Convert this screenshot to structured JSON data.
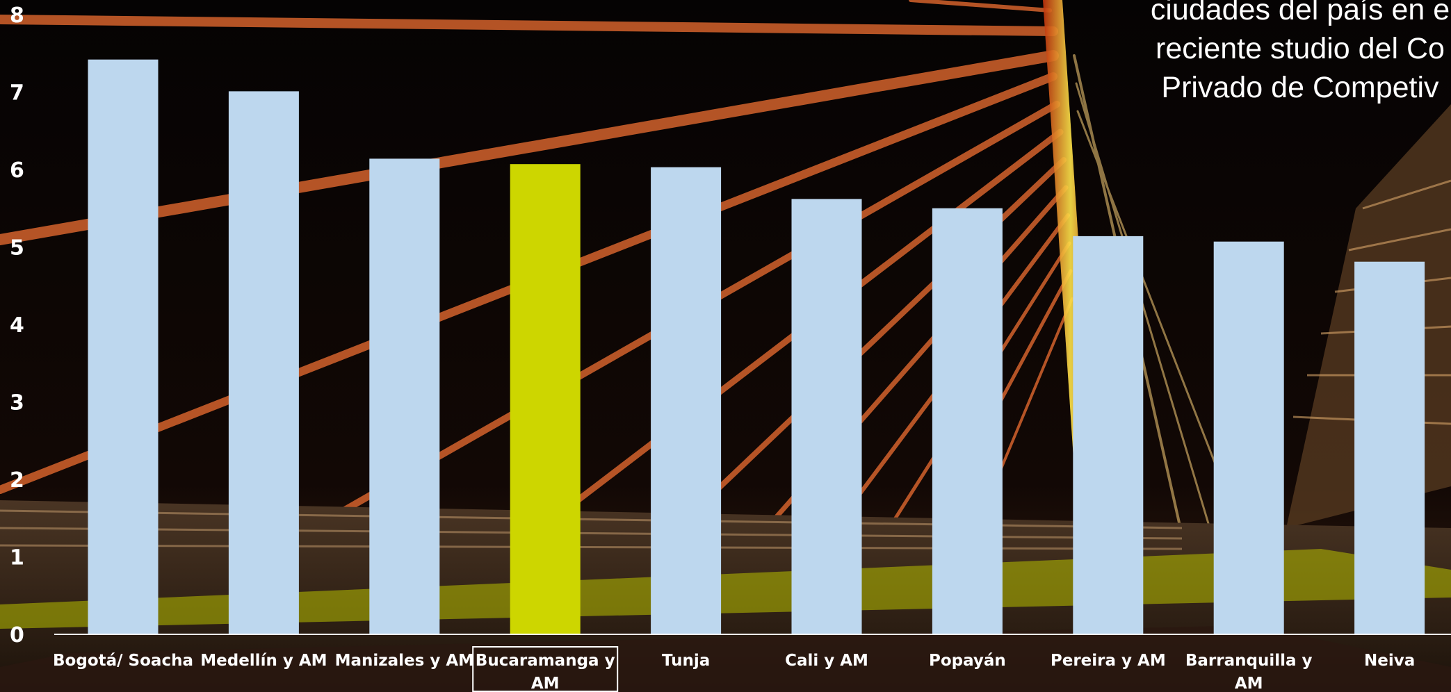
{
  "caption": {
    "lines": [
      "ciudades del país en e",
      "reciente studio del Co",
      "Privado de Competiv"
    ]
  },
  "colors": {
    "bar": "#bdd7ee",
    "highlight": "#cdd600",
    "text": "#ffffff",
    "axis": "#ffffff",
    "highlight_box": "#ffffff"
  },
  "chart_data": {
    "type": "bar",
    "title": "",
    "xlabel": "",
    "ylabel": "",
    "ylim": [
      0,
      8
    ],
    "yticks": [
      "0",
      "1",
      "2",
      "3",
      "4",
      "5",
      "6",
      "7",
      "8"
    ],
    "grid": false,
    "legend": "none",
    "categories": [
      [
        "Bogotá/ Soacha"
      ],
      [
        "Medellín y AM"
      ],
      [
        "Manizales y AM"
      ],
      [
        "Bucaramanga y",
        "AM"
      ],
      [
        "Tunja"
      ],
      [
        "Cali y AM"
      ],
      [
        "Popayán"
      ],
      [
        "Pereira y AM"
      ],
      [
        "Barranquilla y",
        "AM"
      ],
      [
        "Neiva"
      ]
    ],
    "values": [
      7.42,
      7.01,
      6.14,
      6.07,
      6.03,
      5.62,
      5.5,
      5.14,
      5.07,
      4.81
    ],
    "highlight_index": 3
  }
}
